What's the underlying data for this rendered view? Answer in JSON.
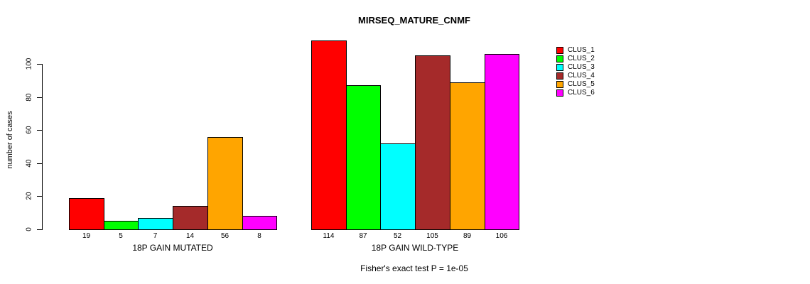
{
  "chart_data": {
    "type": "bar",
    "title": "MIRSEQ_MATURE_CNMF",
    "ylabel": "number of cases",
    "footnote": "Fisher's exact test P = 1e-05",
    "categories": [
      "18P GAIN MUTATED",
      "18P GAIN WILD-TYPE"
    ],
    "series": [
      {
        "name": "CLUS_1",
        "color": "#FF0000",
        "values": [
          19,
          114
        ]
      },
      {
        "name": "CLUS_2",
        "color": "#00FF00",
        "values": [
          5,
          87
        ]
      },
      {
        "name": "CLUS_3",
        "color": "#00FFFF",
        "values": [
          7,
          52
        ]
      },
      {
        "name": "CLUS_4",
        "color": "#A52A2A",
        "values": [
          14,
          105
        ]
      },
      {
        "name": "CLUS_5",
        "color": "#FFA500",
        "values": [
          56,
          89
        ]
      },
      {
        "name": "CLUS_6",
        "color": "#FF00FF",
        "values": [
          8,
          106
        ]
      }
    ],
    "yticks": [
      0,
      20,
      40,
      60,
      80,
      100
    ],
    "ylim": [
      0,
      100
    ],
    "grid": false,
    "bar_value_labels_shown": true,
    "legend_position": "top-right",
    "background_color": "#FFFFFF",
    "axis_color": "#000000"
  }
}
